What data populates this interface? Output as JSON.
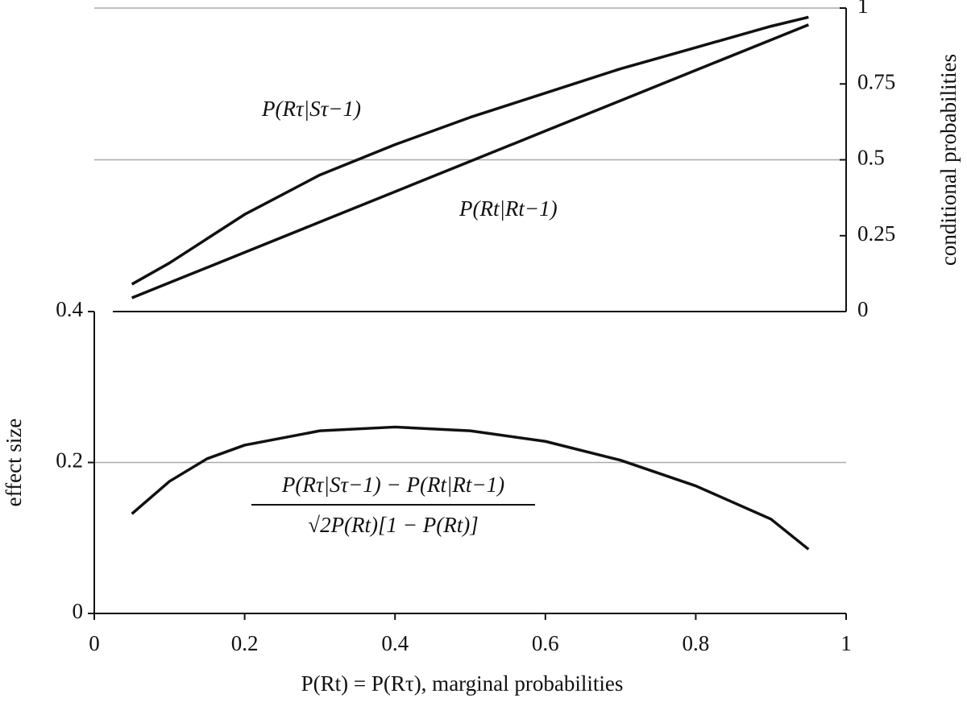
{
  "chart_data": [
    {
      "type": "line",
      "ylabel": "conditional probabilities",
      "y_axis_side": "right",
      "ylim": [
        0,
        1
      ],
      "yticks": [
        0,
        0.25,
        0.5,
        0.75,
        1
      ],
      "gridlines": [
        0.5,
        1
      ],
      "xlim": [
        0,
        1
      ],
      "x": [
        0.05,
        0.1,
        0.15,
        0.2,
        0.3,
        0.4,
        0.5,
        0.6,
        0.7,
        0.8,
        0.9,
        0.95
      ],
      "series": [
        {
          "name": "P(Rτ|Sτ−1)",
          "color": "#111111",
          "values": [
            0.09,
            0.16,
            0.24,
            0.32,
            0.45,
            0.55,
            0.64,
            0.72,
            0.8,
            0.87,
            0.94,
            0.97
          ]
        },
        {
          "name": "P(Rt|Rt−1)",
          "color": "#111111",
          "values": [
            0.045,
            0.095,
            0.145,
            0.195,
            0.295,
            0.395,
            0.495,
            0.595,
            0.695,
            0.795,
            0.895,
            0.945
          ]
        }
      ]
    },
    {
      "type": "line",
      "ylabel": "effect size",
      "y_axis_side": "left",
      "xlabel": "P(Rt) = P(Rτ), marginal probabilities",
      "ylim": [
        0,
        0.4
      ],
      "yticks": [
        0,
        0.2,
        0.4
      ],
      "gridlines": [
        0.2
      ],
      "xlim": [
        0,
        1
      ],
      "xticks": [
        0,
        0.2,
        0.4,
        0.6,
        0.8,
        1
      ],
      "formula_numerator": "P(Rτ|Sτ−1) − P(Rt|Rt−1)",
      "formula_denominator": "√2P(Rt)[1 − P(Rt)]",
      "x": [
        0.05,
        0.1,
        0.15,
        0.2,
        0.3,
        0.4,
        0.5,
        0.6,
        0.7,
        0.8,
        0.9,
        0.95
      ],
      "series": [
        {
          "name": "effect size",
          "color": "#111111",
          "values": [
            0.132,
            0.175,
            0.205,
            0.223,
            0.242,
            0.247,
            0.242,
            0.228,
            0.203,
            0.169,
            0.125,
            0.085
          ]
        }
      ]
    }
  ]
}
